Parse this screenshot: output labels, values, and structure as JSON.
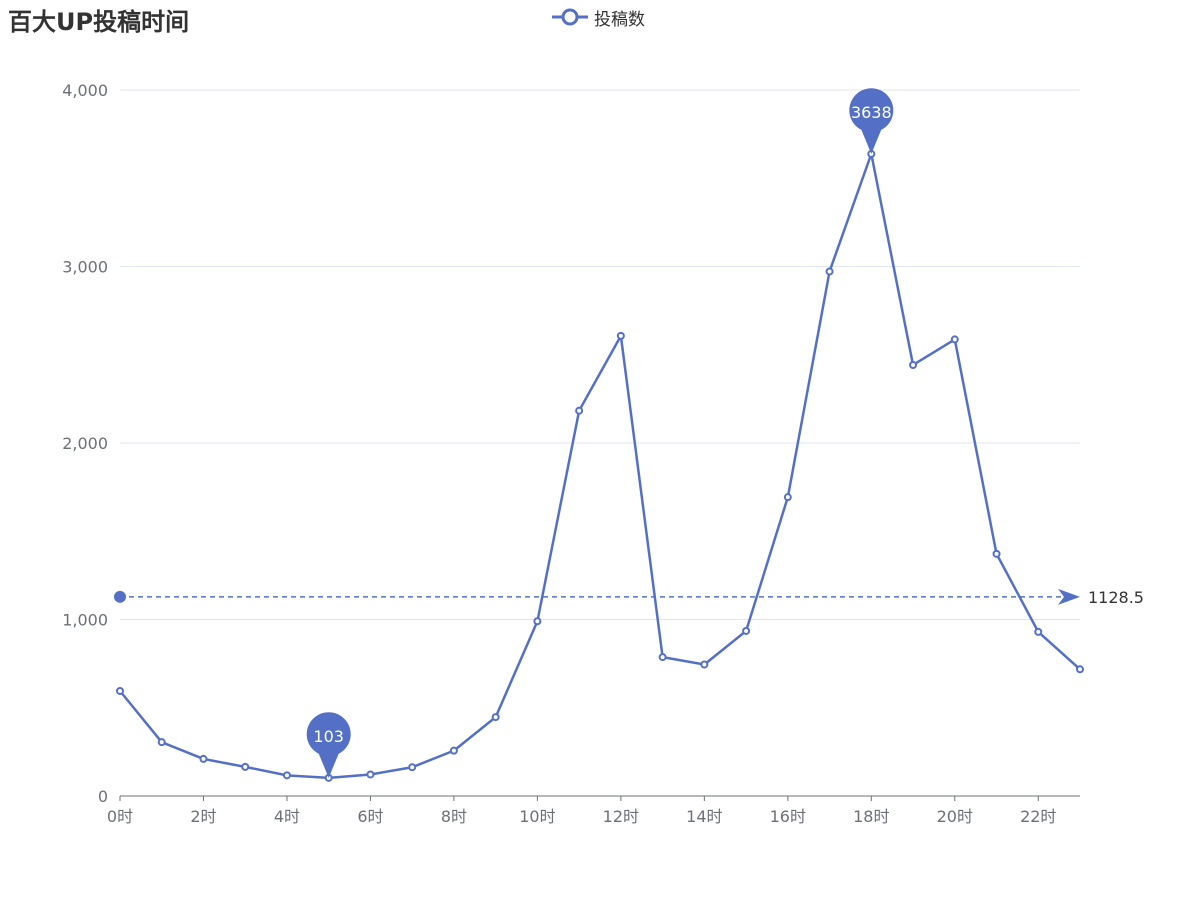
{
  "chart_data": {
    "type": "line",
    "title": "百大UP投稿时间",
    "xlabel": "",
    "ylabel": "",
    "categories": [
      "0时",
      "1时",
      "2时",
      "3时",
      "4时",
      "5时",
      "6时",
      "7时",
      "8时",
      "9时",
      "10时",
      "11时",
      "12时",
      "13时",
      "14时",
      "15时",
      "16时",
      "17时",
      "18时",
      "19时",
      "20时",
      "21时",
      "22时",
      "23时"
    ],
    "x_tick_labels": [
      "0时",
      "2时",
      "4时",
      "6时",
      "8时",
      "10时",
      "12时",
      "14时",
      "16时",
      "18时",
      "20时",
      "22时"
    ],
    "y_tick_labels": [
      "0",
      "1,000",
      "2,000",
      "3,000",
      "4,000"
    ],
    "ylim": [
      0,
      4000
    ],
    "grid": true,
    "legend_position": "top-center",
    "series": [
      {
        "name": "投稿数",
        "color": "#5470c6",
        "values": [
          595,
          305,
          210,
          165,
          117,
          103,
          122,
          163,
          257,
          447,
          990,
          2183,
          2607,
          787,
          745,
          935,
          1693,
          2972,
          3638,
          2442,
          2587,
          1372,
          930,
          718
        ]
      }
    ],
    "mark_points": [
      {
        "label": "3638",
        "category": "18时",
        "value": 3638
      },
      {
        "label": "103",
        "category": "5时",
        "value": 103
      }
    ],
    "mark_line": {
      "label": "1128.5",
      "value": 1128.5
    }
  }
}
